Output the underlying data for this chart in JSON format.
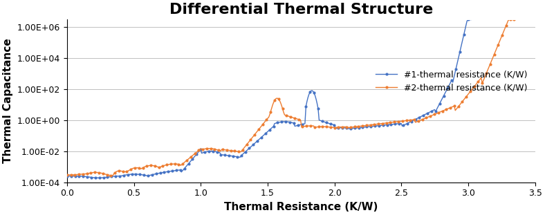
{
  "title": "Differential Thermal Structure",
  "xlabel": "Thermal Resistance (K/W)",
  "ylabel": "Thermal Capacitance",
  "xlim": [
    0,
    3.5
  ],
  "ylim_log": [
    0.0001,
    3000000.0
  ],
  "yticks": [
    0.0001,
    0.01,
    1.0,
    100.0,
    10000.0,
    1000000.0
  ],
  "ytick_labels": [
    "1.00E-04",
    "1.00E-02",
    "1.00E+00",
    "1.00E+02",
    "1.00E+04",
    "1.00E+06"
  ],
  "xticks": [
    0,
    0.5,
    1.0,
    1.5,
    2.0,
    2.5,
    3.0,
    3.5
  ],
  "color1": "#4472C4",
  "color2": "#ED7D31",
  "label1": "#1-thermal resistance (K/W)",
  "label2": "#2-thermal resistance (K/W)",
  "title_fontsize": 16,
  "axis_label_fontsize": 11,
  "tick_fontsize": 9,
  "background_color": "#FFFFFF",
  "grid_color": "#C0C0C0",
  "marker_size": 3.0,
  "linewidth": 1.0
}
